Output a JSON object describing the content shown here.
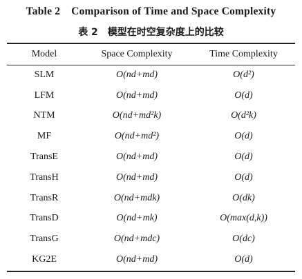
{
  "title_en": {
    "table_no": "Table 2",
    "text": "Comparison of Time and Space Complexity"
  },
  "title_zh": {
    "table_no": "表 2",
    "text": "模型在时空复杂度上的比较"
  },
  "columns": [
    "Model",
    "Space Complexity",
    "Time Complexity"
  ],
  "rows": [
    {
      "model": "SLM",
      "space": "O(nd+md)",
      "time": "O(d²)"
    },
    {
      "model": "LFM",
      "space": "O(nd+md)",
      "time": "O(d)"
    },
    {
      "model": "NTM",
      "space": "O(nd+md²k)",
      "time": "O(d²k)"
    },
    {
      "model": "MF",
      "space": "O(nd+md²)",
      "time": "O(d)"
    },
    {
      "model": "TransE",
      "space": "O(nd+md)",
      "time": "O(d)"
    },
    {
      "model": "TransH",
      "space": "O(nd+md)",
      "time": "O(d)"
    },
    {
      "model": "TransR",
      "space": "O(nd+mdk)",
      "time": "O(dk)"
    },
    {
      "model": "TransD",
      "space": "O(nd+mk)",
      "time": "O(max(d,k))"
    },
    {
      "model": "TransG",
      "space": "O(nd+mdc)",
      "time": "O(dc)"
    },
    {
      "model": "KG2E",
      "space": "O(nd+md)",
      "time": "O(d)"
    }
  ]
}
